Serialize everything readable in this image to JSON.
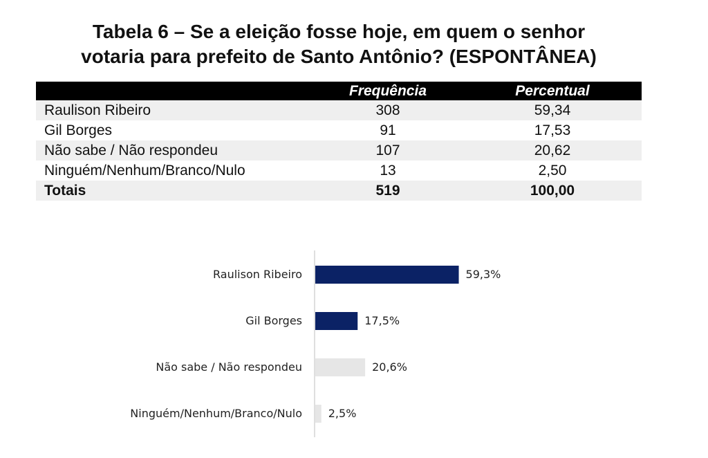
{
  "title_line1": "Tabela 6 – Se a eleição fosse hoje, em quem o senhor",
  "title_line2": "votaria para prefeito de Santo Antônio? (ESPONTÂNEA)",
  "table": {
    "headers": [
      "",
      "Frequência",
      "Percentual"
    ],
    "rows": [
      {
        "label": "Raulison Ribeiro",
        "freq": "308",
        "pct": "59,34"
      },
      {
        "label": "Gil Borges",
        "freq": "91",
        "pct": "17,53"
      },
      {
        "label": "Não sabe / Não respondeu",
        "freq": "107",
        "pct": "20,62"
      },
      {
        "label": "Ninguém/Nenhum/Branco/Nulo",
        "freq": "13",
        "pct": "2,50"
      }
    ],
    "total": {
      "label": "Totais",
      "freq": "519",
      "pct": "100,00"
    }
  },
  "chart_data": {
    "type": "bar",
    "orientation": "horizontal",
    "categories": [
      "Raulison Ribeiro",
      "Gil Borges",
      "Não sabe / Não respondeu",
      "Ninguém/Nenhum/Branco/Nulo"
    ],
    "values": [
      59.3,
      17.5,
      20.6,
      2.5
    ],
    "data_labels": [
      "59,3%",
      "17,5%",
      "20,6%",
      "2,5%"
    ],
    "colors": [
      "#0b2265",
      "#0b2265",
      "#e6e6e6",
      "#e6e6e6"
    ],
    "xlim": [
      0,
      100
    ],
    "grid": false
  }
}
